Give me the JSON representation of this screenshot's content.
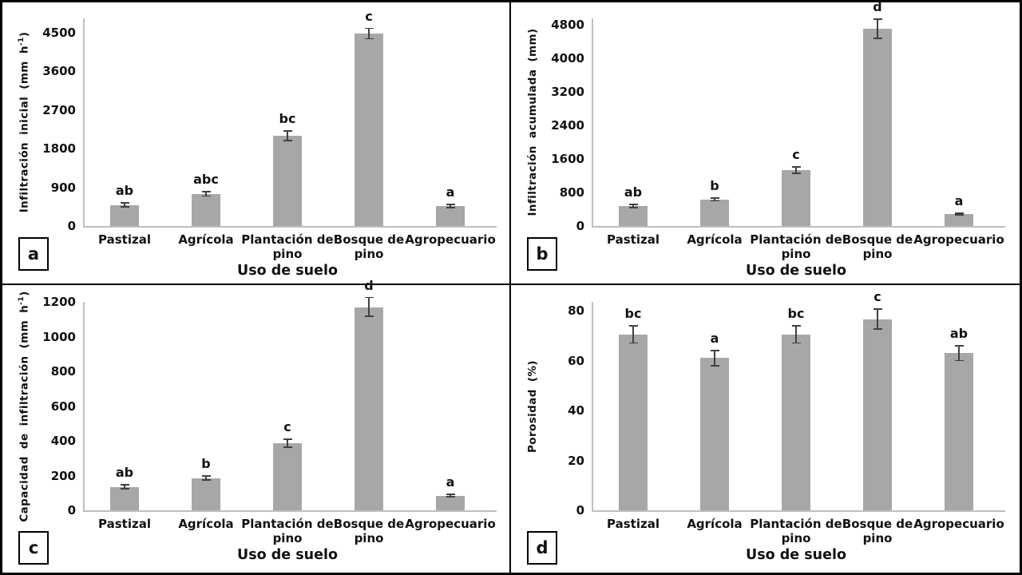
{
  "figure_xlabel": "Uso de suelo",
  "style": {
    "bar_color": "#a7a7a7",
    "error_bar_color": "#404040",
    "axis_line_color": "#bfbfbf",
    "text_color": "#111111",
    "panel_border_color": "#000000",
    "background": "#ffffff"
  },
  "chart_data": [
    {
      "type": "bar",
      "panel_label": "a",
      "title": "",
      "xlabel": "Uso de suelo",
      "ylabel": "Infiltración inicial (mm h⁻¹)",
      "ylabel_parts": {
        "pre": "Infiltración inicial (mm h",
        "sup": "-1",
        "post": ")"
      },
      "categories": [
        "Pastizal",
        "Agrícola",
        "Plantación de pino",
        "Bosque de pino",
        "Agropecuario"
      ],
      "category_lines": [
        [
          "Pastizal"
        ],
        [
          "Agrícola"
        ],
        [
          "Plantación de",
          "pino"
        ],
        [
          "Bosque de",
          "pino"
        ],
        [
          "Agropecuario"
        ]
      ],
      "values": [
        490,
        750,
        2100,
        4480,
        465
      ],
      "errors": [
        45,
        55,
        115,
        120,
        40
      ],
      "sig_letters": [
        "ab",
        "abc",
        "bc",
        "c",
        "a"
      ],
      "yticks": [
        0,
        900,
        1800,
        2700,
        3600,
        4500
      ],
      "ylim": [
        0,
        4500
      ],
      "grid": false,
      "legend": null
    },
    {
      "type": "bar",
      "panel_label": "b",
      "title": "",
      "xlabel": "Uso de suelo",
      "ylabel": "Infiltración acumulada (mm)",
      "ylabel_parts": {
        "pre": "Infiltración acumulada (mm)",
        "sup": "",
        "post": ""
      },
      "categories": [
        "Pastizal",
        "Agrícola",
        "Plantación de pino",
        "Bosque de pino",
        "Agropecuario"
      ],
      "category_lines": [
        [
          "Pastizal"
        ],
        [
          "Agrícola"
        ],
        [
          "Plantación de",
          "pino"
        ],
        [
          "Bosque de",
          "pino"
        ],
        [
          "Agropecuario"
        ]
      ],
      "values": [
        470,
        630,
        1330,
        4700,
        290
      ],
      "errors": [
        35,
        30,
        75,
        230,
        20
      ],
      "sig_letters": [
        "ab",
        "b",
        "c",
        "d",
        "a"
      ],
      "yticks": [
        0,
        800,
        1600,
        2400,
        3200,
        4000,
        4800
      ],
      "ylim": [
        0,
        4800
      ],
      "grid": false,
      "legend": null
    },
    {
      "type": "bar",
      "panel_label": "c",
      "title": "",
      "xlabel": "Uso de suelo",
      "ylabel": "Capacidad de infiltración (mm h⁻¹)",
      "ylabel_parts": {
        "pre": "Capacidad de infiltración (mm h",
        "sup": "-1",
        "post": ")"
      },
      "categories": [
        "Pastizal",
        "Agrícola",
        "Plantación de pino",
        "Bosque de pino",
        "Agropecuario"
      ],
      "category_lines": [
        [
          "Pastizal"
        ],
        [
          "Agrícola"
        ],
        [
          "Plantación de",
          "pino"
        ],
        [
          "Bosque de",
          "pino"
        ],
        [
          "Agropecuario"
        ]
      ],
      "values": [
        135,
        185,
        385,
        1170,
        85
      ],
      "errors": [
        12,
        12,
        22,
        55,
        8
      ],
      "sig_letters": [
        "ab",
        "b",
        "c",
        "d",
        "a"
      ],
      "yticks": [
        0,
        200,
        400,
        600,
        800,
        1000,
        1200
      ],
      "ylim": [
        0,
        1200
      ],
      "grid": false,
      "legend": null
    },
    {
      "type": "bar",
      "panel_label": "d",
      "title": "",
      "xlabel": "Uso de suelo",
      "ylabel": "Porosidad (%)",
      "ylabel_parts": {
        "pre": "Porosidad (%)",
        "sup": "",
        "post": ""
      },
      "categories": [
        "Pastizal",
        "Agrícola",
        "Plantación de pino",
        "Bosque de pino",
        "Agropecuario"
      ],
      "category_lines": [
        [
          "Pastizal"
        ],
        [
          "Agrícola"
        ],
        [
          "Plantación de",
          "pino"
        ],
        [
          "Bosque de",
          "pino"
        ],
        [
          "Agropecuario"
        ]
      ],
      "values": [
        70.5,
        61,
        70.5,
        76.5,
        63
      ],
      "errors": [
        3.5,
        3,
        3.5,
        4,
        3
      ],
      "sig_letters": [
        "bc",
        "a",
        "bc",
        "c",
        "ab"
      ],
      "yticks": [
        0,
        20,
        40,
        60,
        80
      ],
      "ylim": [
        0,
        80
      ],
      "grid": false,
      "legend": null
    }
  ]
}
